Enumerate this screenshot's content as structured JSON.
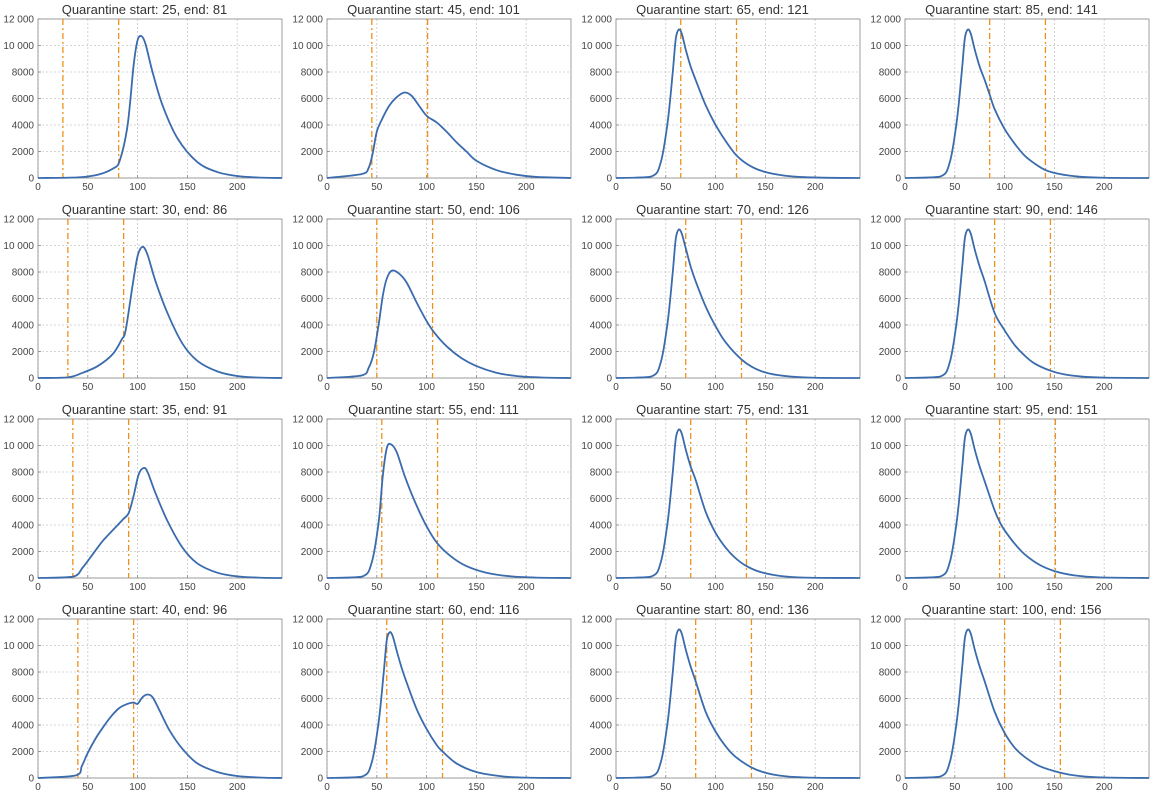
{
  "colors": {
    "curve": "#3a6bad",
    "marker": "#f0901a",
    "grid": "#c8c8c8",
    "axis": "#888888",
    "text": "#333333"
  },
  "chart_data": [
    {
      "type": "line",
      "title_prefix": "Quarantine start:",
      "start": 25,
      "end_prefix": "end:",
      "end": 81,
      "xlim": [
        0,
        245
      ],
      "ylim": [
        0,
        12000
      ],
      "xticks": [
        "0",
        "50",
        "100",
        "150",
        "200"
      ],
      "yticks": [
        "0",
        "2000",
        "4000",
        "6000",
        "8000",
        "10 000",
        "12 000"
      ],
      "vlines": [
        25,
        81
      ],
      "x": [
        0,
        40,
        60,
        75,
        82,
        90,
        96,
        100,
        104,
        108,
        115,
        125,
        140,
        160,
        180,
        200,
        220,
        245
      ],
      "y": [
        0,
        50,
        250,
        700,
        1300,
        4000,
        8500,
        10400,
        10700,
        10100,
        8000,
        5500,
        3000,
        1200,
        450,
        150,
        40,
        0
      ]
    },
    {
      "type": "line",
      "title_prefix": "Quarantine start:",
      "start": 45,
      "end_prefix": "end:",
      "end": 101,
      "xlim": [
        0,
        245
      ],
      "ylim": [
        0,
        12000
      ],
      "xticks": [
        "0",
        "50",
        "100",
        "150",
        "200"
      ],
      "yticks": [
        "0",
        "2000",
        "4000",
        "6000",
        "8000",
        "10 000",
        "12 000"
      ],
      "vlines": [
        45,
        101
      ],
      "x": [
        0,
        35,
        42,
        46,
        50,
        55,
        62,
        70,
        78,
        85,
        92,
        100,
        110,
        120,
        130,
        140,
        150,
        170,
        190,
        210,
        245
      ],
      "y": [
        0,
        300,
        800,
        1900,
        3500,
        4400,
        5400,
        6100,
        6450,
        6200,
        5500,
        4700,
        4200,
        3500,
        2700,
        2000,
        1300,
        600,
        250,
        80,
        0
      ]
    },
    {
      "type": "line",
      "title_prefix": "Quarantine start:",
      "start": 65,
      "end_prefix": "end:",
      "end": 121,
      "xlim": [
        0,
        245
      ],
      "ylim": [
        0,
        12000
      ],
      "xticks": [
        "0",
        "50",
        "100",
        "150",
        "200"
      ],
      "yticks": [
        "0",
        "2000",
        "4000",
        "6000",
        "8000",
        "10 000",
        "12 000"
      ],
      "vlines": [
        65,
        121
      ],
      "x": [
        0,
        35,
        45,
        52,
        57,
        60,
        63,
        66,
        70,
        75,
        80,
        90,
        100,
        110,
        121,
        135,
        150,
        170,
        190,
        215,
        245
      ],
      "y": [
        0,
        100,
        1200,
        4300,
        8000,
        10500,
        11200,
        10900,
        9700,
        8400,
        7400,
        5500,
        4000,
        2800,
        1700,
        900,
        450,
        170,
        60,
        15,
        0
      ]
    },
    {
      "type": "line",
      "title_prefix": "Quarantine start:",
      "start": 85,
      "end_prefix": "end:",
      "end": 141,
      "xlim": [
        0,
        245
      ],
      "ylim": [
        0,
        12000
      ],
      "xticks": [
        "0",
        "50",
        "100",
        "150",
        "200"
      ],
      "yticks": [
        "0",
        "2000",
        "4000",
        "6000",
        "8000",
        "10 000",
        "12 000"
      ],
      "vlines": [
        85,
        141
      ],
      "x": [
        0,
        35,
        45,
        52,
        57,
        60,
        63,
        66,
        70,
        75,
        80,
        85,
        90,
        100,
        110,
        120,
        130,
        141,
        155,
        175,
        200,
        245
      ],
      "y": [
        0,
        100,
        1200,
        4300,
        8000,
        10500,
        11200,
        10900,
        9700,
        8400,
        7400,
        6300,
        5200,
        3700,
        2600,
        1700,
        1100,
        600,
        300,
        100,
        20,
        0
      ]
    },
    {
      "type": "line",
      "title_prefix": "Quarantine start:",
      "start": 30,
      "end_prefix": "end:",
      "end": 86,
      "xlim": [
        0,
        245
      ],
      "ylim": [
        0,
        12000
      ],
      "xticks": [
        "0",
        "50",
        "100",
        "150",
        "200"
      ],
      "yticks": [
        "0",
        "2000",
        "4000",
        "6000",
        "8000",
        "10 000",
        "12 000"
      ],
      "vlines": [
        30,
        86
      ],
      "x": [
        0,
        30,
        45,
        60,
        75,
        84,
        88,
        95,
        100,
        105,
        110,
        118,
        130,
        145,
        160,
        180,
        200,
        220,
        245
      ],
      "y": [
        0,
        50,
        400,
        900,
        1800,
        2900,
        3600,
        7000,
        9200,
        9900,
        9300,
        7300,
        4900,
        2600,
        1300,
        500,
        150,
        40,
        0
      ]
    },
    {
      "type": "line",
      "title_prefix": "Quarantine start:",
      "start": 50,
      "end_prefix": "end:",
      "end": 106,
      "xlim": [
        0,
        245
      ],
      "ylim": [
        0,
        12000
      ],
      "xticks": [
        "0",
        "50",
        "100",
        "150",
        "200"
      ],
      "yticks": [
        "0",
        "2000",
        "4000",
        "6000",
        "8000",
        "10 000",
        "12 000"
      ],
      "vlines": [
        50,
        106
      ],
      "x": [
        0,
        35,
        42,
        47,
        52,
        56,
        60,
        65,
        72,
        80,
        90,
        100,
        108,
        120,
        135,
        150,
        170,
        190,
        215,
        245
      ],
      "y": [
        0,
        200,
        800,
        1900,
        4100,
        6200,
        7500,
        8100,
        7900,
        7200,
        5700,
        4300,
        3400,
        2400,
        1500,
        900,
        400,
        150,
        40,
        0
      ]
    },
    {
      "type": "line",
      "title_prefix": "Quarantine start:",
      "start": 70,
      "end_prefix": "end:",
      "end": 126,
      "xlim": [
        0,
        245
      ],
      "ylim": [
        0,
        12000
      ],
      "xticks": [
        "0",
        "50",
        "100",
        "150",
        "200"
      ],
      "yticks": [
        "0",
        "2000",
        "4000",
        "6000",
        "8000",
        "10 000",
        "12 000"
      ],
      "vlines": [
        70,
        126
      ],
      "x": [
        0,
        35,
        45,
        52,
        57,
        60,
        63,
        66,
        70,
        75,
        80,
        90,
        100,
        110,
        126,
        140,
        155,
        175,
        200,
        245
      ],
      "y": [
        0,
        100,
        1200,
        4300,
        8000,
        10500,
        11200,
        10900,
        9800,
        8400,
        7300,
        5400,
        3900,
        2700,
        1400,
        700,
        320,
        110,
        20,
        0
      ]
    },
    {
      "type": "line",
      "title_prefix": "Quarantine start:",
      "start": 90,
      "end_prefix": "end:",
      "end": 146,
      "xlim": [
        0,
        245
      ],
      "ylim": [
        0,
        12000
      ],
      "xticks": [
        "0",
        "50",
        "100",
        "150",
        "200"
      ],
      "yticks": [
        "0",
        "2000",
        "4000",
        "6000",
        "8000",
        "10 000",
        "12 000"
      ],
      "vlines": [
        90,
        146
      ],
      "x": [
        0,
        35,
        45,
        52,
        57,
        60,
        63,
        66,
        70,
        75,
        80,
        90,
        100,
        110,
        120,
        130,
        146,
        160,
        180,
        205,
        245
      ],
      "y": [
        0,
        100,
        1200,
        4300,
        8000,
        10500,
        11200,
        10900,
        9700,
        8400,
        7300,
        4900,
        3600,
        2500,
        1700,
        1100,
        550,
        270,
        90,
        20,
        0
      ]
    },
    {
      "type": "line",
      "title_prefix": "Quarantine start:",
      "start": 35,
      "end_prefix": "end:",
      "end": 91,
      "xlim": [
        0,
        245
      ],
      "ylim": [
        0,
        12000
      ],
      "xticks": [
        "0",
        "50",
        "100",
        "150",
        "200"
      ],
      "yticks": [
        "0",
        "2000",
        "4000",
        "6000",
        "8000",
        "10 000",
        "12 000"
      ],
      "vlines": [
        35,
        91
      ],
      "x": [
        0,
        35,
        45,
        55,
        65,
        75,
        85,
        91,
        96,
        101,
        106,
        110,
        118,
        130,
        145,
        160,
        180,
        200,
        225,
        245
      ],
      "y": [
        0,
        100,
        800,
        1800,
        2800,
        3600,
        4400,
        4900,
        6200,
        7800,
        8300,
        8000,
        6400,
        4300,
        2300,
        1100,
        400,
        120,
        20,
        0
      ]
    },
    {
      "type": "line",
      "title_prefix": "Quarantine start:",
      "start": 55,
      "end_prefix": "end:",
      "end": 111,
      "xlim": [
        0,
        245
      ],
      "ylim": [
        0,
        12000
      ],
      "xticks": [
        "0",
        "50",
        "100",
        "150",
        "200"
      ],
      "yticks": [
        "0",
        "2000",
        "4000",
        "6000",
        "8000",
        "10 000",
        "12 000"
      ],
      "vlines": [
        55,
        111
      ],
      "x": [
        0,
        35,
        45,
        52,
        56,
        60,
        64,
        70,
        78,
        88,
        100,
        111,
        125,
        140,
        160,
        185,
        210,
        245
      ],
      "y": [
        0,
        100,
        1200,
        4300,
        7700,
        9800,
        10100,
        9500,
        7700,
        5800,
        3900,
        2600,
        1600,
        900,
        400,
        120,
        30,
        0
      ]
    },
    {
      "type": "line",
      "title_prefix": "Quarantine start:",
      "start": 75,
      "end_prefix": "end:",
      "end": 131,
      "xlim": [
        0,
        245
      ],
      "ylim": [
        0,
        12000
      ],
      "xticks": [
        "0",
        "50",
        "100",
        "150",
        "200"
      ],
      "yticks": [
        "0",
        "2000",
        "4000",
        "6000",
        "8000",
        "10 000",
        "12 000"
      ],
      "vlines": [
        75,
        131
      ],
      "x": [
        0,
        35,
        45,
        52,
        57,
        60,
        63,
        66,
        70,
        75,
        80,
        90,
        100,
        110,
        120,
        131,
        145,
        165,
        190,
        245
      ],
      "y": [
        0,
        100,
        1200,
        4300,
        8000,
        10500,
        11200,
        10900,
        9700,
        8400,
        7400,
        5000,
        3400,
        2300,
        1500,
        900,
        450,
        150,
        30,
        0
      ]
    },
    {
      "type": "line",
      "title_prefix": "Quarantine start:",
      "start": 95,
      "end_prefix": "end:",
      "end": 151,
      "xlim": [
        0,
        245
      ],
      "ylim": [
        0,
        12000
      ],
      "xticks": [
        "0",
        "50",
        "100",
        "150",
        "200"
      ],
      "yticks": [
        "0",
        "2000",
        "4000",
        "6000",
        "8000",
        "10 000",
        "12 000"
      ],
      "vlines": [
        95,
        151
      ],
      "x": [
        0,
        35,
        45,
        52,
        57,
        60,
        63,
        66,
        70,
        75,
        80,
        90,
        96,
        100,
        110,
        120,
        135,
        151,
        170,
        195,
        245
      ],
      "y": [
        0,
        100,
        1200,
        4300,
        8000,
        10500,
        11200,
        10900,
        9700,
        8400,
        7300,
        5100,
        4100,
        3600,
        2600,
        1800,
        1000,
        500,
        200,
        50,
        0
      ]
    },
    {
      "type": "line",
      "title_prefix": "Quarantine start:",
      "start": 40,
      "end_prefix": "end:",
      "end": 96,
      "xlim": [
        0,
        245
      ],
      "ylim": [
        0,
        12000
      ],
      "xticks": [
        "0",
        "50",
        "100",
        "150",
        "200"
      ],
      "yticks": [
        "0",
        "2000",
        "4000",
        "6000",
        "8000",
        "10 000",
        "12 000"
      ],
      "vlines": [
        40,
        96
      ],
      "x": [
        0,
        38,
        44,
        50,
        58,
        66,
        74,
        82,
        90,
        96,
        100,
        105,
        110,
        115,
        122,
        132,
        145,
        160,
        180,
        200,
        225,
        245
      ],
      "y": [
        0,
        200,
        900,
        1900,
        3000,
        3900,
        4700,
        5300,
        5600,
        5700,
        5600,
        6100,
        6300,
        6100,
        5100,
        3600,
        2200,
        1100,
        450,
        150,
        30,
        0
      ]
    },
    {
      "type": "line",
      "title_prefix": "Quarantine start:",
      "start": 60,
      "end_prefix": "end:",
      "end": 116,
      "xlim": [
        0,
        245
      ],
      "ylim": [
        0,
        12000
      ],
      "xticks": [
        "0",
        "50",
        "100",
        "150",
        "200"
      ],
      "yticks": [
        "0",
        "2000",
        "4000",
        "6000",
        "8000",
        "10 000",
        "12 000"
      ],
      "vlines": [
        60,
        116
      ],
      "x": [
        0,
        35,
        45,
        52,
        57,
        60,
        63,
        66,
        70,
        75,
        80,
        90,
        100,
        110,
        116,
        130,
        150,
        175,
        200,
        245
      ],
      "y": [
        0,
        100,
        1200,
        4300,
        8000,
        10400,
        11000,
        10700,
        9600,
        8300,
        7200,
        5200,
        3700,
        2500,
        2000,
        1100,
        450,
        130,
        30,
        0
      ]
    },
    {
      "type": "line",
      "title_prefix": "Quarantine start:",
      "start": 80,
      "end_prefix": "end:",
      "end": 136,
      "xlim": [
        0,
        245
      ],
      "ylim": [
        0,
        12000
      ],
      "xticks": [
        "0",
        "50",
        "100",
        "150",
        "200"
      ],
      "yticks": [
        "0",
        "2000",
        "4000",
        "6000",
        "8000",
        "10 000",
        "12 000"
      ],
      "vlines": [
        80,
        136
      ],
      "x": [
        0,
        35,
        45,
        52,
        57,
        60,
        63,
        66,
        70,
        75,
        80,
        90,
        100,
        110,
        120,
        136,
        150,
        170,
        195,
        245
      ],
      "y": [
        0,
        100,
        1200,
        4300,
        8000,
        10500,
        11200,
        10900,
        9700,
        8400,
        7300,
        5000,
        3500,
        2400,
        1600,
        800,
        400,
        130,
        30,
        0
      ]
    },
    {
      "type": "line",
      "title_prefix": "Quarantine start:",
      "start": 100,
      "end_prefix": "end:",
      "end": 156,
      "xlim": [
        0,
        245
      ],
      "ylim": [
        0,
        12000
      ],
      "xticks": [
        "0",
        "50",
        "100",
        "150",
        "200"
      ],
      "yticks": [
        "0",
        "2000",
        "4000",
        "6000",
        "8000",
        "10 000",
        "12 000"
      ],
      "vlines": [
        100,
        156
      ],
      "x": [
        0,
        35,
        45,
        52,
        57,
        60,
        63,
        66,
        70,
        75,
        80,
        90,
        100,
        110,
        120,
        135,
        156,
        175,
        200,
        245
      ],
      "y": [
        0,
        100,
        1200,
        4300,
        8000,
        10500,
        11200,
        10900,
        9700,
        8400,
        7300,
        5000,
        3400,
        2300,
        1600,
        900,
        400,
        150,
        40,
        0
      ]
    }
  ]
}
